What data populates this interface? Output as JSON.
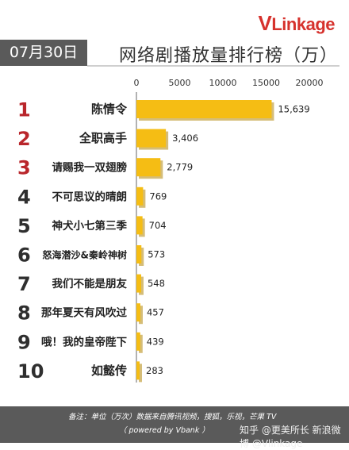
{
  "header": {
    "logo_v": "V",
    "logo_rest": "Linkage",
    "date": "07月30日",
    "title": "网络剧播放量排行榜（万）"
  },
  "footer": {
    "note_line1": "备注：单位（万次）数据来自腾讯视频，搜狐，乐视，芒果 TV",
    "note_line2": "（ powered by Vbank ）",
    "watermark": "知乎 @更美所长 新浪微博 @Vlinkage"
  },
  "colors": {
    "bar": "#f5bd14",
    "bar_shadow": "#b38709",
    "rank": "#b9262b",
    "rank_other": "#2f2f2f",
    "axis": "#666666"
  },
  "chart_data": {
    "type": "bar",
    "orientation": "horizontal",
    "xlim": [
      0,
      20000
    ],
    "ticks": [
      0,
      5000,
      10000,
      15000,
      20000
    ],
    "tick_labels": [
      "0",
      "5000",
      "10000",
      "15000",
      "20000"
    ],
    "ranks": [
      "1",
      "2",
      "3",
      "4",
      "5",
      "6",
      "7",
      "8",
      "9",
      "10"
    ],
    "categories": [
      "陈情令",
      "全职高手",
      "请赐我一双翅膀",
      "不可思议的晴朗",
      "神犬小七第三季",
      "怒海潜沙&秦岭神树",
      "我们不能是朋友",
      "那年夏天有风吹过",
      "哦！我的皇帝陛下",
      "如懿传"
    ],
    "values": [
      15639,
      3406,
      2779,
      769,
      704,
      573,
      548,
      457,
      439,
      283
    ],
    "value_labels": [
      "15,639",
      "3,406",
      "2,779",
      "769",
      "704",
      "573",
      "548",
      "457",
      "439",
      "283"
    ]
  }
}
